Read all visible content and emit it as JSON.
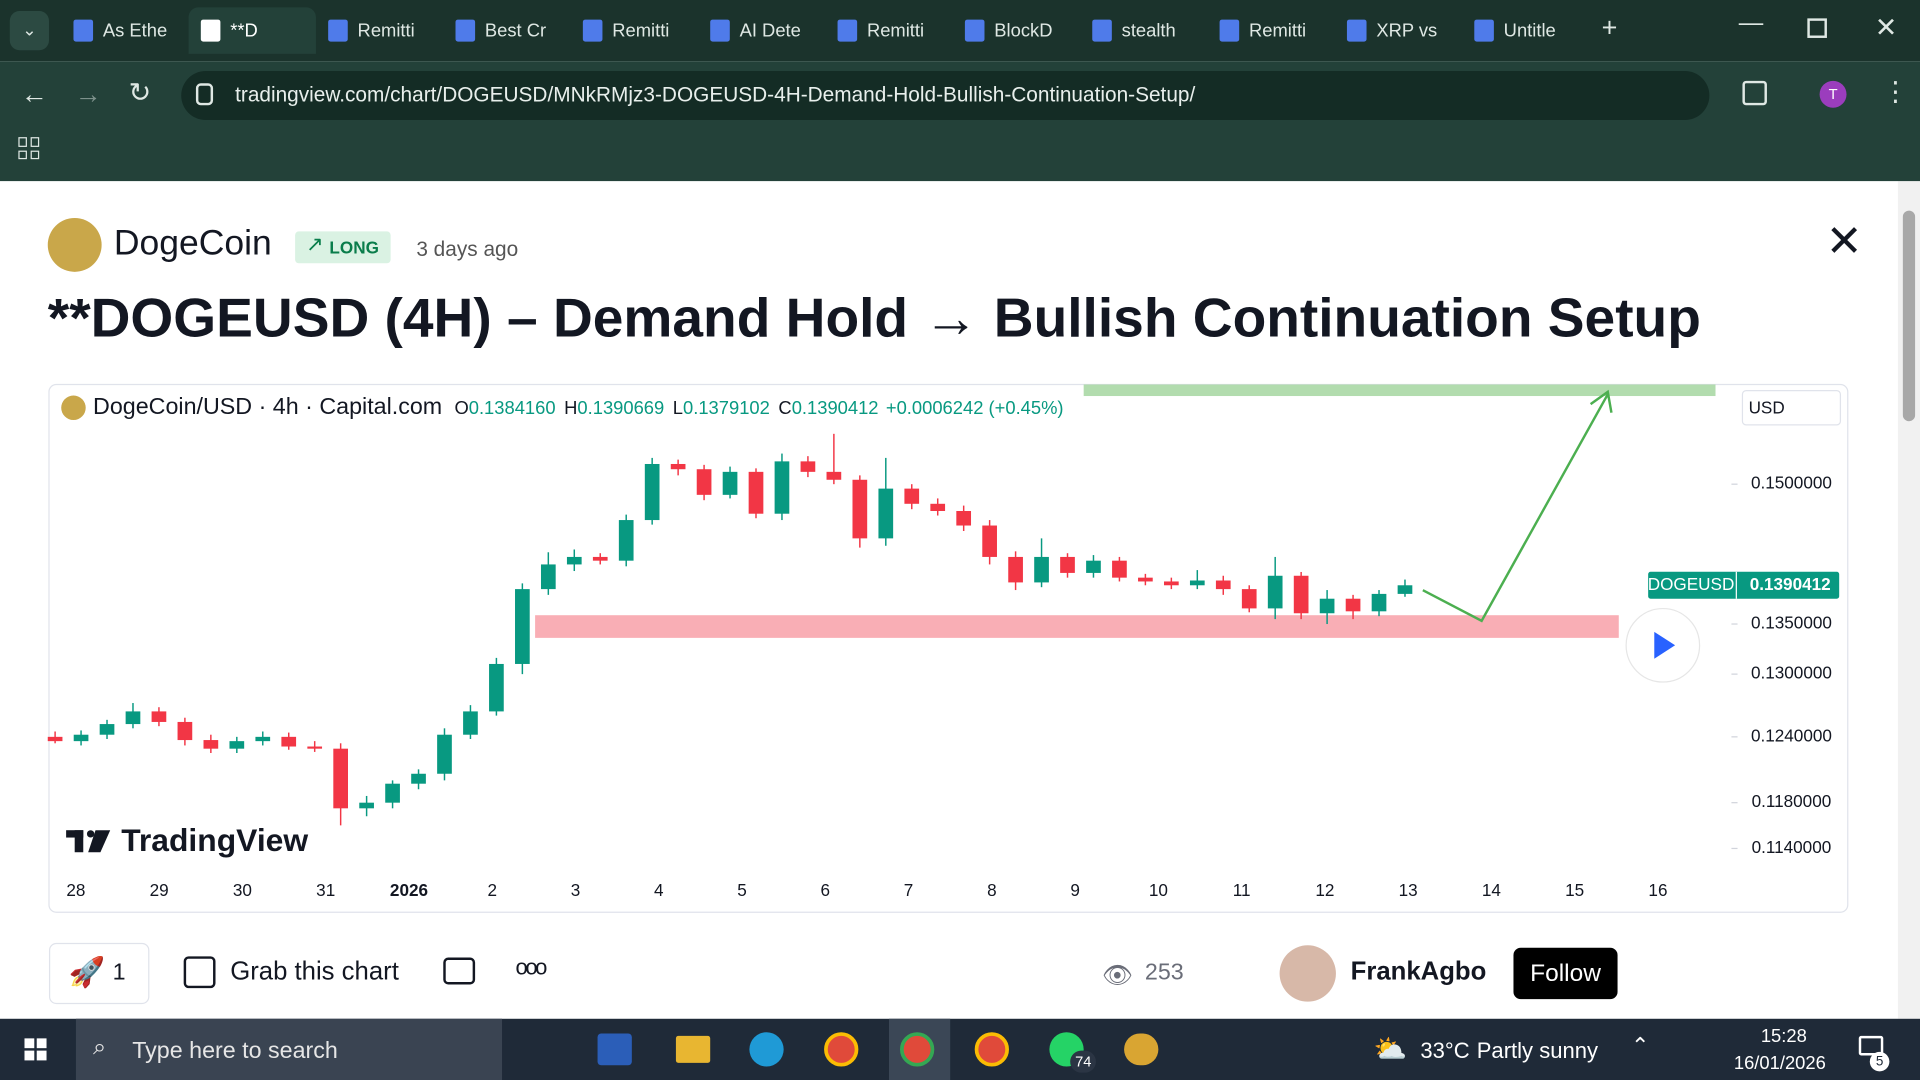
{
  "browser": {
    "tabs": [
      {
        "title": "As Ethe",
        "active": false
      },
      {
        "title": "**D",
        "active": true
      },
      {
        "title": "Remitti",
        "active": false
      },
      {
        "title": "Best Cr",
        "active": false
      },
      {
        "title": "Remitti",
        "active": false
      },
      {
        "title": "AI Dete",
        "active": false
      },
      {
        "title": "Remitti",
        "active": false
      },
      {
        "title": "BlockD",
        "active": false
      },
      {
        "title": "stealth",
        "active": false
      },
      {
        "title": "Remitti",
        "active": false
      },
      {
        "title": "XRP vs",
        "active": false
      },
      {
        "title": "Untitle",
        "active": false
      }
    ],
    "url": "tradingview.com/chart/DOGEUSD/MNkRMjz3-DOGEUSD-4H-Demand-Hold-Bullish-Continuation-Setup/",
    "profile_initial": "T"
  },
  "post": {
    "author": "DogeCoin",
    "badge": "LONG",
    "time": "3 days ago",
    "title": "**DOGEUSD (4H) – Demand Hold → Bullish Continuation Setup"
  },
  "chart_data": {
    "type": "candlestick",
    "symbol": "DogeCoin/USD · 4h · Capital.com",
    "ohlc": [
      {
        "key": "O",
        "value": "0.1384160"
      },
      {
        "key": "H",
        "value": "0.1390669"
      },
      {
        "key": "L",
        "value": "0.1379102"
      },
      {
        "key": "C",
        "value": "0.1390412"
      }
    ],
    "change": "+0.0006242 (+0.45%)",
    "currency": "USD",
    "price_tag": {
      "symbol": "DOGEUSD",
      "label": "0.1390412"
    },
    "watermark": "TradingView",
    "x_labels": [
      "28",
      "29",
      "30",
      "31",
      "2026",
      "2",
      "3",
      "4",
      "5",
      "6",
      "7",
      "8",
      "9",
      "10",
      "11",
      "12",
      "13",
      "14",
      "15",
      "16"
    ],
    "open": [
      0.124,
      0.1236,
      0.1242,
      0.1252,
      0.1264,
      0.1254,
      0.1237,
      0.1229,
      0.1236,
      0.124,
      0.1231,
      0.1229,
      0.1175,
      0.118,
      0.1197,
      0.1206,
      0.1242,
      0.1264,
      0.131,
      0.1386,
      0.1412,
      0.142,
      0.1416,
      0.146,
      0.1523,
      0.1517,
      0.1488,
      0.1514,
      0.1467,
      0.1526,
      0.1514,
      0.1505,
      0.144,
      0.1495,
      0.1478,
      0.147,
      0.1454,
      0.142,
      0.1393,
      0.142,
      0.1403,
      0.1416,
      0.1398,
      0.1394,
      0.139,
      0.1395,
      0.1386,
      0.1366,
      0.14,
      0.1361,
      0.1376,
      0.1363,
      0.1381
    ],
    "high": [
      0.1245,
      0.1246,
      0.1256,
      0.1272,
      0.1268,
      0.1258,
      0.1242,
      0.124,
      0.1245,
      0.1244,
      0.1236,
      0.1234,
      0.1186,
      0.12,
      0.121,
      0.1248,
      0.127,
      0.1316,
      0.1392,
      0.1425,
      0.1428,
      0.1424,
      0.1466,
      0.153,
      0.1528,
      0.1522,
      0.152,
      0.1518,
      0.1535,
      0.1532,
      0.1558,
      0.151,
      0.153,
      0.15,
      0.1484,
      0.1476,
      0.146,
      0.1426,
      0.144,
      0.1424,
      0.1422,
      0.142,
      0.1402,
      0.1398,
      0.1406,
      0.14,
      0.139,
      0.142,
      0.1404,
      0.1385,
      0.138,
      0.1385,
      0.1396
    ],
    "low": [
      0.1234,
      0.1232,
      0.1238,
      0.1248,
      0.125,
      0.1232,
      0.1225,
      0.1225,
      0.1232,
      0.1228,
      0.1226,
      0.116,
      0.1168,
      0.1175,
      0.1192,
      0.12,
      0.1238,
      0.126,
      0.13,
      0.138,
      0.1405,
      0.1412,
      0.141,
      0.1455,
      0.151,
      0.1482,
      0.1484,
      0.1462,
      0.146,
      0.1508,
      0.15,
      0.143,
      0.1432,
      0.1472,
      0.1465,
      0.1448,
      0.1412,
      0.1385,
      0.1388,
      0.1398,
      0.1398,
      0.1394,
      0.139,
      0.1386,
      0.1386,
      0.138,
      0.1362,
      0.1355,
      0.1355,
      0.135,
      0.1355,
      0.1358,
      0.1378
    ],
    "close": [
      0.1236,
      0.1242,
      0.1252,
      0.1264,
      0.1254,
      0.1237,
      0.1229,
      0.1236,
      0.124,
      0.1231,
      0.1229,
      0.1175,
      0.118,
      0.1197,
      0.1206,
      0.1242,
      0.1264,
      0.131,
      0.1386,
      0.1412,
      0.142,
      0.1416,
      0.146,
      0.1523,
      0.1517,
      0.1488,
      0.1514,
      0.1467,
      0.1526,
      0.1514,
      0.1505,
      0.144,
      0.1495,
      0.1478,
      0.147,
      0.1454,
      0.142,
      0.1393,
      0.142,
      0.1403,
      0.1416,
      0.1398,
      0.1394,
      0.139,
      0.1395,
      0.1386,
      0.1366,
      0.14,
      0.1361,
      0.1376,
      0.1363,
      0.1381,
      0.139
    ],
    "up_color": "#089981",
    "down_color": "#f23645",
    "ylim": [
      0.1117,
      0.1617
    ],
    "log_scale": true,
    "yticks": [
      {
        "value": 0.15,
        "label": "0.1500000"
      },
      {
        "value": 0.135,
        "label": "0.1350000"
      },
      {
        "value": 0.13,
        "label": "0.1300000"
      },
      {
        "value": 0.124,
        "label": "0.1240000"
      },
      {
        "value": 0.118,
        "label": "0.1180000"
      },
      {
        "value": 0.114,
        "label": "0.1140000"
      }
    ],
    "demand_zone": [
      0.1336,
      0.1359
    ],
    "target_zone": [
      0.1603,
      0.1617
    ]
  },
  "footer": {
    "boosts": 1,
    "grab": "Grab this chart",
    "views": 253,
    "user": "FrankAgbo",
    "follow": "Follow"
  },
  "taskbar": {
    "search": "Type here to search",
    "temperature": "33°C",
    "weather": "Partly sunny",
    "time": "15:28",
    "date": "16/01/2026",
    "whatsapp_badge": 74,
    "notifications": 5
  }
}
